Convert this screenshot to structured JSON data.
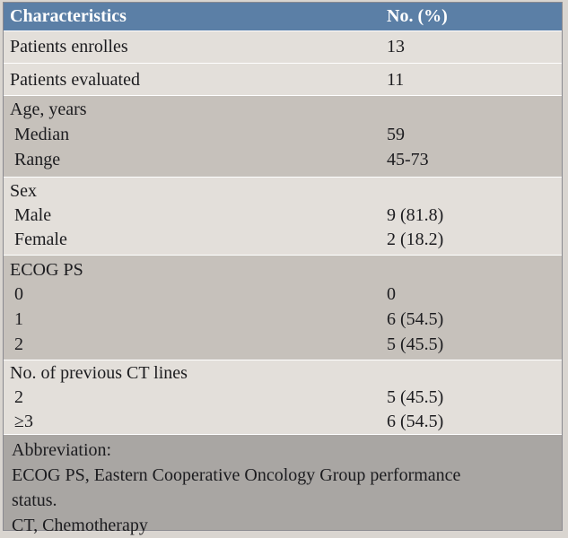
{
  "table": {
    "header": {
      "characteristics": "Characteristics",
      "number": "No. (%)"
    },
    "rows": [
      {
        "label": "Patients enrolles",
        "value": "13"
      },
      {
        "label": "Patients evaluated",
        "value": "11"
      },
      {
        "label": "Age, years",
        "value": ""
      },
      {
        "label": "Median",
        "value": "59"
      },
      {
        "label": "Range",
        "value": "45-73"
      },
      {
        "label": "Sex",
        "value": ""
      },
      {
        "label": "Male",
        "value": "9 (81.8)"
      },
      {
        "label": "Female",
        "value": "2 (18.2)"
      },
      {
        "label": "ECOG  PS",
        "value": ""
      },
      {
        "label": "0",
        "value": "0"
      },
      {
        "label": "1",
        "value": "6 (54.5)"
      },
      {
        "label": "2",
        "value": "5 (45.5)"
      },
      {
        "label": "No. of previous  CT lines",
        "value": ""
      },
      {
        "label": "2",
        "value": "5 (45.5)"
      },
      {
        "label": "≥3",
        "value": "6 (54.5)"
      }
    ],
    "footnote": {
      "title": "Abbreviation:",
      "line1": "ECOG PS, Eastern Cooperative Oncology Group performance",
      "line2": "status.",
      "line3": "CT, Chemotherapy"
    }
  }
}
